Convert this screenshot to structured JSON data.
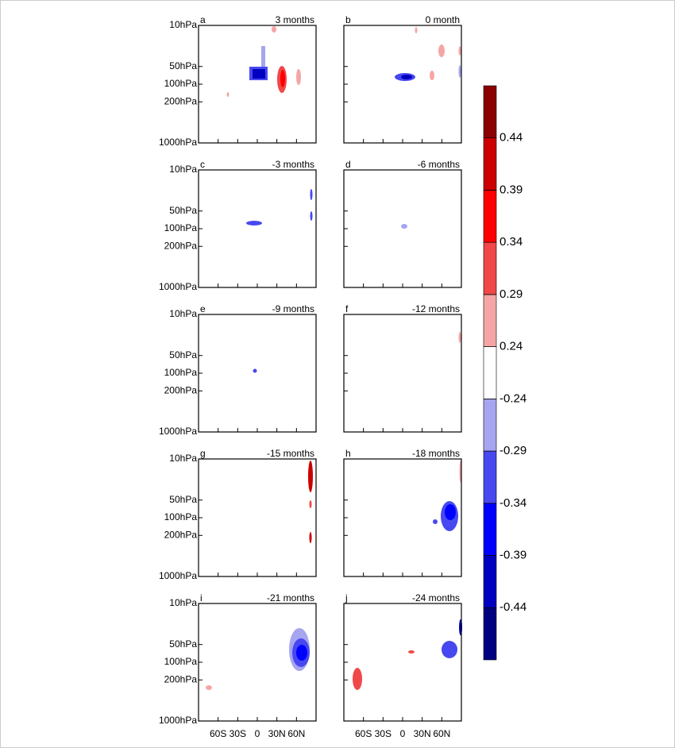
{
  "chart_data": {
    "type": "contour",
    "panels": [
      {
        "label": "a",
        "title": "3 months"
      },
      {
        "label": "b",
        "title": "0 month"
      },
      {
        "label": "c",
        "title": "-3 months"
      },
      {
        "label": "d",
        "title": "-6 months"
      },
      {
        "label": "e",
        "title": "-9 months"
      },
      {
        "label": "f",
        "title": "-12 months"
      },
      {
        "label": "g",
        "title": "-15 months"
      },
      {
        "label": "h",
        "title": "-18 months"
      },
      {
        "label": "i",
        "title": "-21 months"
      },
      {
        "label": "j",
        "title": "-24 months"
      }
    ],
    "xlim": [
      -90,
      90
    ],
    "xticks": [
      {
        "value": -60,
        "label": "60S"
      },
      {
        "value": -30,
        "label": "30S"
      },
      0,
      {
        "value": 30,
        "label": "30N"
      },
      {
        "value": 60,
        "label": "60N"
      }
    ],
    "ylim": [
      1000,
      10
    ],
    "log_y": true,
    "yticks": [
      {
        "value": 10,
        "label": "10hPa"
      },
      {
        "value": 50,
        "label": "50hPa"
      },
      {
        "value": 100,
        "label": "100hPa"
      },
      {
        "value": 200,
        "label": "200hPa"
      },
      {
        "value": 1000,
        "label": "1000hPa"
      }
    ],
    "colorbar": {
      "levels": [
        -0.44,
        -0.39,
        -0.34,
        -0.29,
        -0.24,
        0.24,
        0.29,
        0.34,
        0.39,
        0.44
      ],
      "colors": [
        "#000080",
        "#0000c0",
        "#0000ff",
        "#4848f0",
        "#a5a5f0",
        "#ffffff",
        "#f5a5a5",
        "#f04848",
        "#ff0000",
        "#cc0000",
        "#8b0000"
      ]
    }
  }
}
